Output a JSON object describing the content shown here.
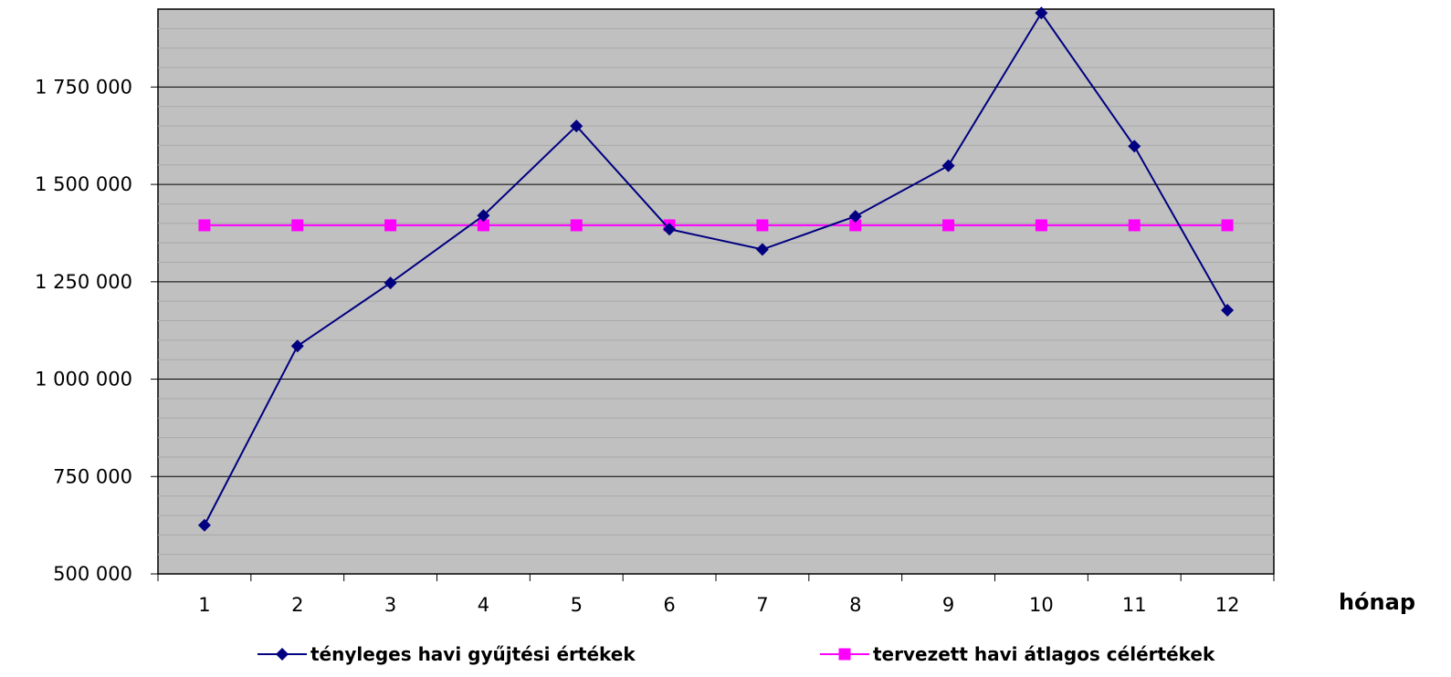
{
  "chart_data": {
    "type": "line",
    "categories": [
      "1",
      "2",
      "3",
      "4",
      "5",
      "6",
      "7",
      "8",
      "9",
      "10",
      "11",
      "12"
    ],
    "xlabel": "hónap",
    "ylabel": "",
    "ylim": [
      500000,
      1950000
    ],
    "yticks": [
      500000,
      750000,
      1000000,
      1250000,
      1500000,
      1750000
    ],
    "ytick_labels": [
      "500 000",
      "750 000",
      "1 000 000",
      "1 250 000",
      "1 500 000",
      "1 750 000"
    ],
    "grid": true,
    "legend_position": "bottom",
    "series": [
      {
        "name": "tényleges havi gyűjtési értékek",
        "color": "#000080",
        "marker": "diamond",
        "values": [
          625000,
          1085000,
          1247000,
          1420000,
          1650000,
          1385000,
          1333000,
          1418000,
          1548000,
          1940000,
          1598000,
          1177000
        ]
      },
      {
        "name": "tervezett havi átlagos célértékek",
        "color": "#ff00ff",
        "marker": "square",
        "values": [
          1395000,
          1395000,
          1395000,
          1395000,
          1395000,
          1395000,
          1395000,
          1395000,
          1395000,
          1395000,
          1395000,
          1395000
        ]
      }
    ],
    "colors": {
      "plot_background": "#c0c0c0",
      "gridline": "#000000"
    }
  }
}
